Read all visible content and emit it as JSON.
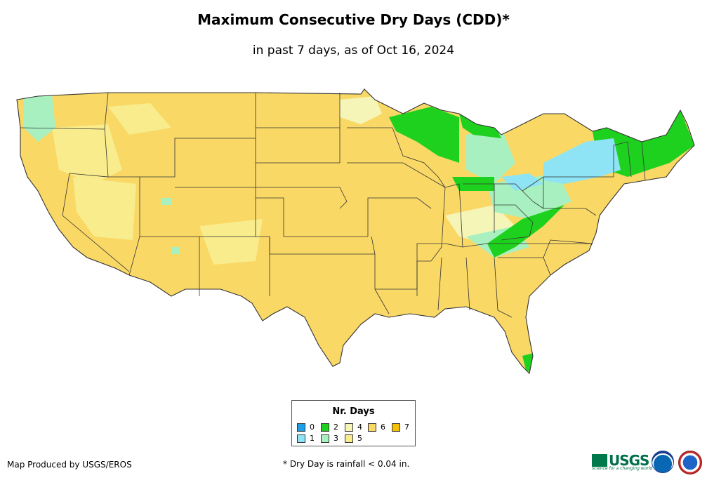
{
  "title": "Maximum Consecutive Dry Days (CDD)*",
  "subtitle": "in past 7 days, as of Oct 16, 2024",
  "legend": {
    "title": "Nr. Days",
    "items": [
      {
        "label": "0",
        "color": "#1e9fe6"
      },
      {
        "label": "1",
        "color": "#8ee3f5"
      },
      {
        "label": "2",
        "color": "#1fd11f"
      },
      {
        "label": "3",
        "color": "#a8f0c0"
      },
      {
        "label": "4",
        "color": "#f5f5b8"
      },
      {
        "label": "5",
        "color": "#f8ec8c"
      },
      {
        "label": "6",
        "color": "#f9d866"
      },
      {
        "label": "7",
        "color": "#f5c000"
      }
    ]
  },
  "credit": "Map Produced by USGS/EROS",
  "footnote": "* Dry Day is rainfall < 0.04 in.",
  "logos": {
    "usgs_text": "USGS",
    "usgs_tagline": "science for a changing world"
  }
}
